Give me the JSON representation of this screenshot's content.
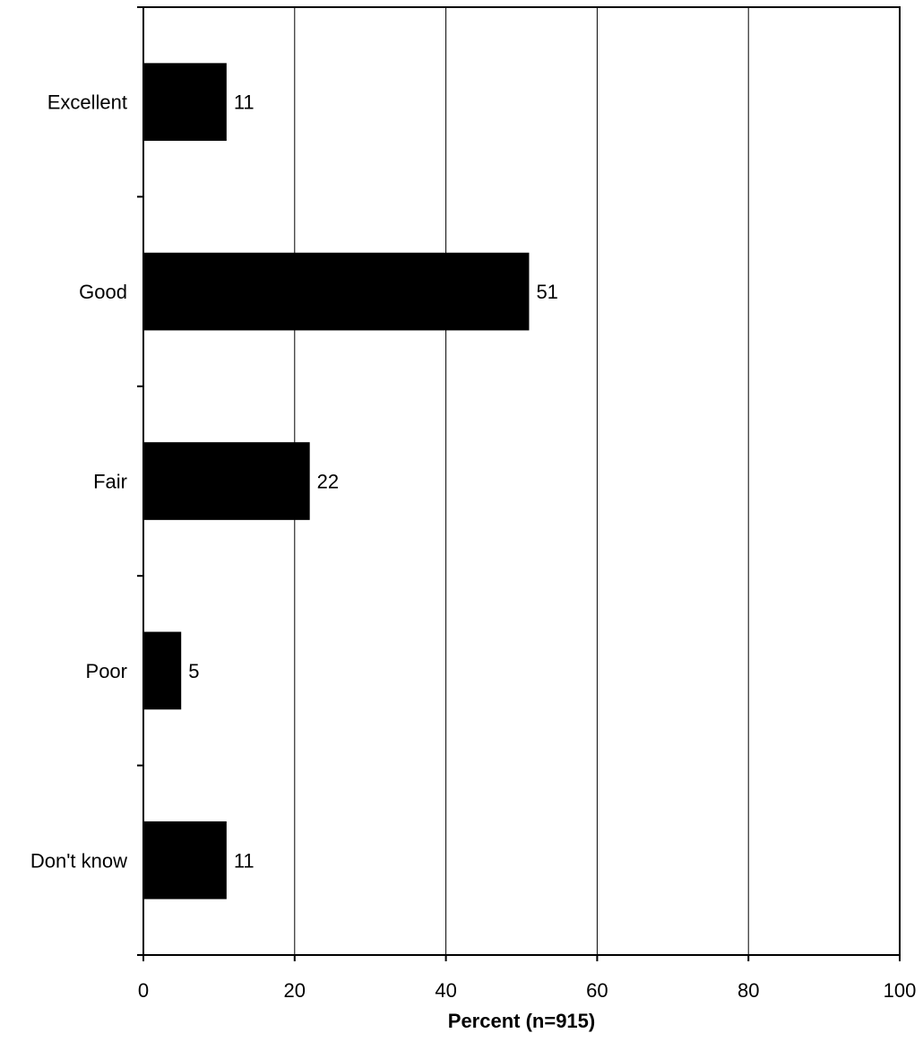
{
  "chart_data": {
    "type": "bar",
    "orientation": "horizontal",
    "categories": [
      "Excellent",
      "Good",
      "Fair",
      "Poor",
      "Don't know"
    ],
    "values": [
      11,
      51,
      22,
      5,
      11
    ],
    "data_labels": [
      "11",
      "51",
      "22",
      "5",
      "11"
    ],
    "title": "",
    "xlabel": "Percent (n=915)",
    "ylabel": "",
    "xlim": [
      0,
      100
    ],
    "x_ticks": [
      0,
      20,
      40,
      60,
      80,
      100
    ],
    "x_tick_labels": [
      "0",
      "20",
      "40",
      "60",
      "80",
      "100"
    ],
    "grid": "vertical lines at major x ticks",
    "legend": "none",
    "colors": {
      "bar": "#000000",
      "background": "#ffffff",
      "grid": "#000000"
    }
  }
}
